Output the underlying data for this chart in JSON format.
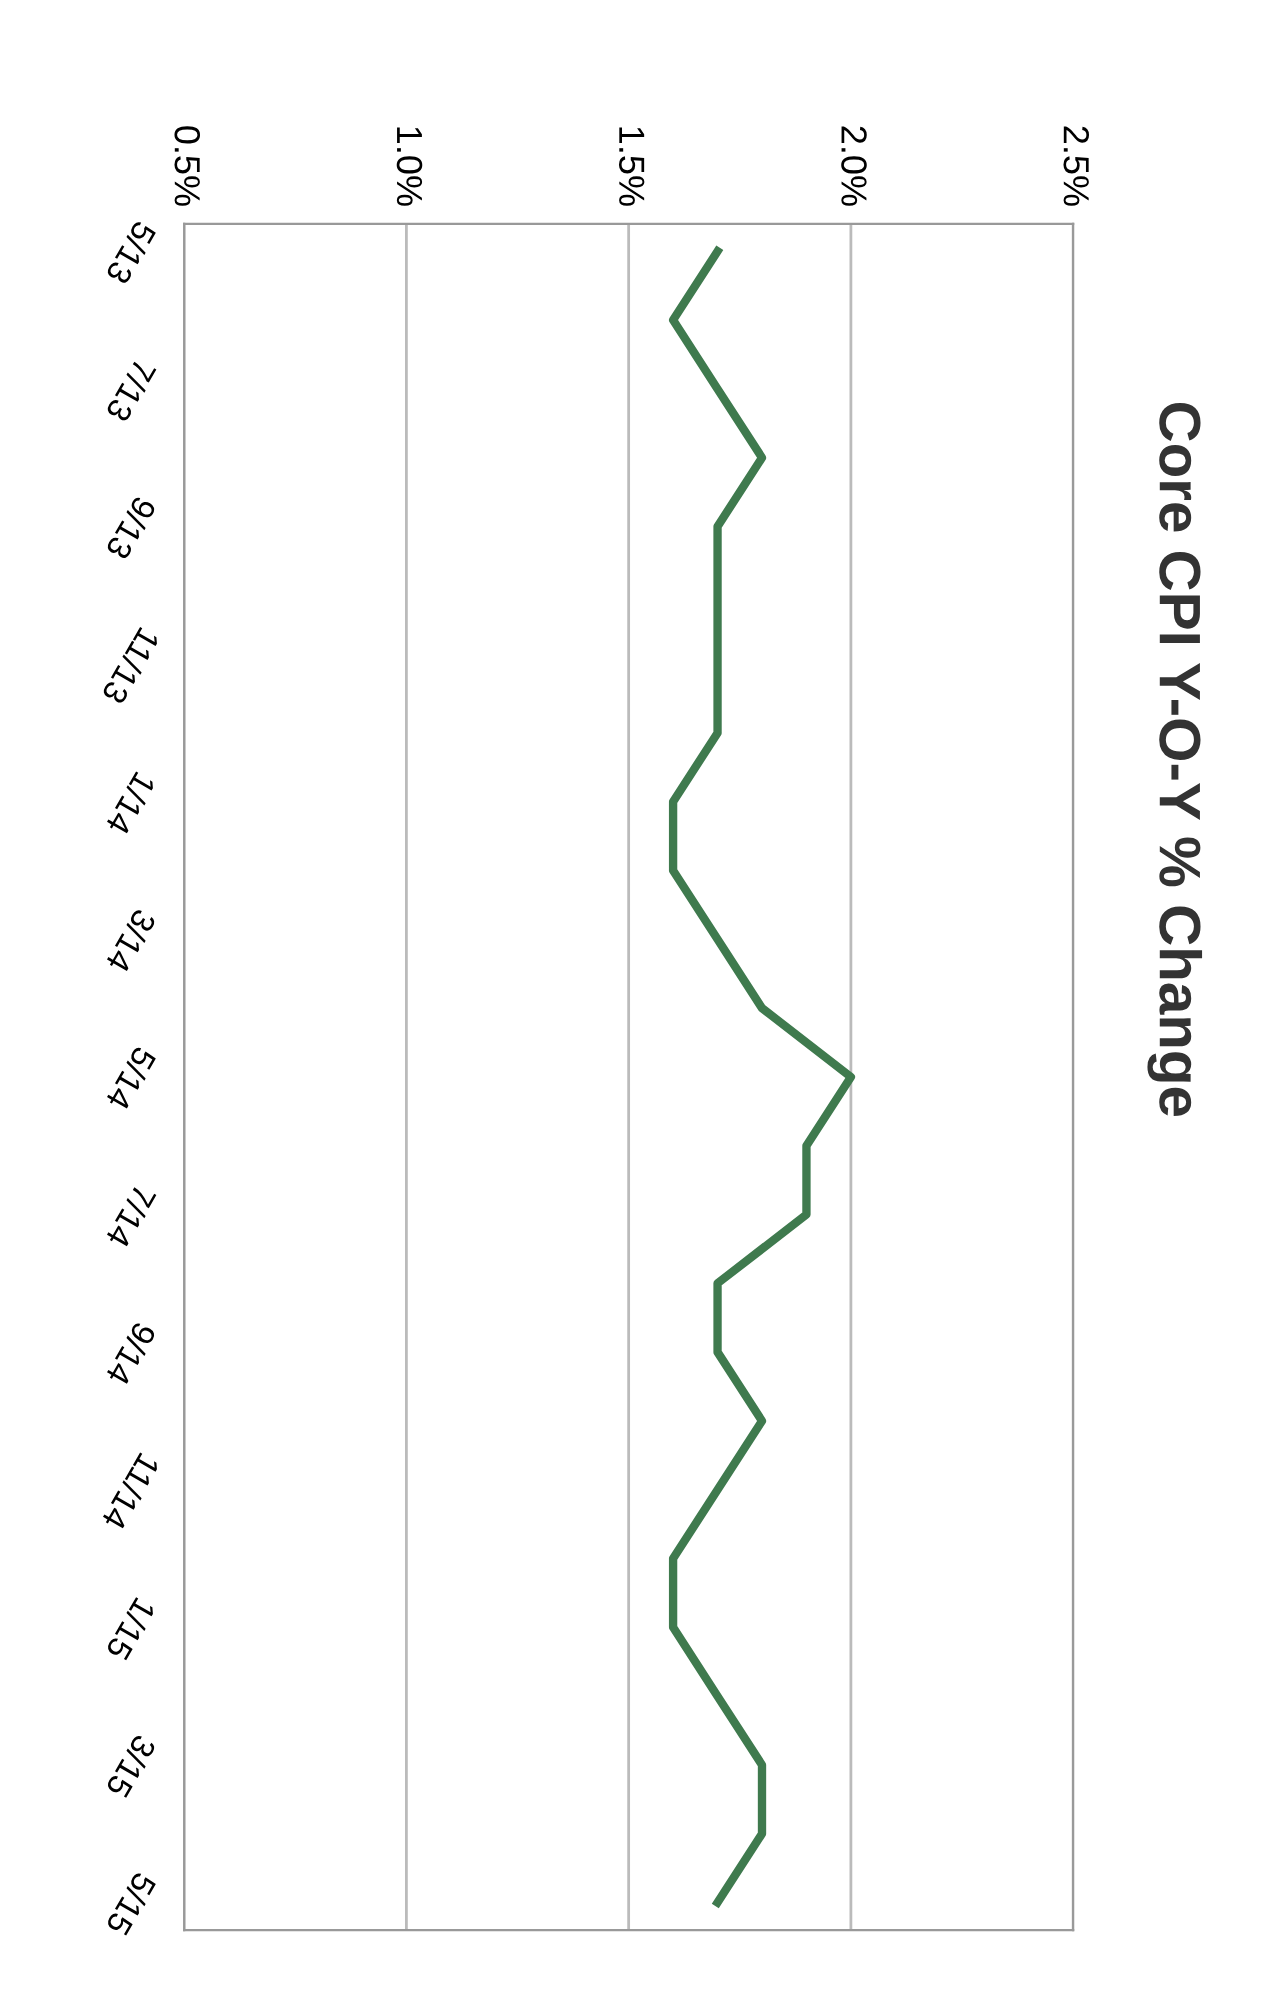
{
  "chart_data": {
    "type": "line",
    "title": "Core CPI Y-O-Y % Change",
    "orientation": "horizontal",
    "categories": [
      "5/13",
      null,
      "7/13",
      null,
      "9/13",
      null,
      "11/13",
      null,
      "1/14",
      null,
      "3/14",
      null,
      "5/14",
      null,
      "7/14",
      null,
      "9/14",
      null,
      "11/14",
      null,
      "1/15",
      null,
      "3/15",
      null,
      "5/15"
    ],
    "values": [
      1.7,
      1.6,
      1.7,
      1.8,
      1.7,
      1.7,
      1.7,
      1.7,
      1.6,
      1.6,
      1.7,
      1.8,
      2.0,
      1.9,
      1.9,
      1.7,
      1.7,
      1.8,
      1.7,
      1.6,
      1.6,
      1.7,
      1.8,
      1.8,
      1.7
    ],
    "color": "#3f7a4e",
    "xlim": [
      0.5,
      2.5
    ],
    "xticks": [
      {
        "value": 0.5,
        "label": "0.5%"
      },
      {
        "value": 1.0,
        "label": "1.0%"
      },
      {
        "value": 1.5,
        "label": "1.5%"
      },
      {
        "value": 2.0,
        "label": "2.0%"
      },
      {
        "value": 2.5,
        "label": "2.5%"
      }
    ],
    "grid": "x",
    "marker": "none",
    "line_style": "solid",
    "legend": false
  }
}
